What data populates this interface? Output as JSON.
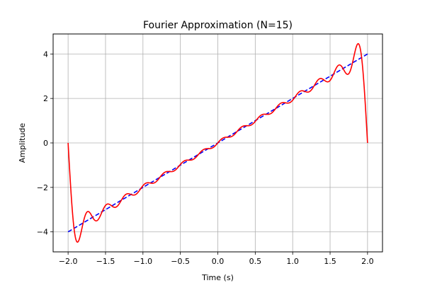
{
  "chart_data": {
    "type": "line",
    "title": "Fourier Approximation (N=15)",
    "xlabel": "Time (s)",
    "ylabel": "Amplitude",
    "xlim": [
      -2.2,
      2.2
    ],
    "ylim": [
      -4.9,
      4.9
    ],
    "xticks": [
      -2.0,
      -1.5,
      -1.0,
      -0.5,
      0.0,
      0.5,
      1.0,
      1.5,
      2.0
    ],
    "xtick_labels": [
      "−2.0",
      "−1.5",
      "−1.0",
      "−0.5",
      "0.0",
      "0.5",
      "1.0",
      "1.5",
      "2.0"
    ],
    "yticks": [
      -4,
      -2,
      0,
      2,
      4
    ],
    "ytick_labels": [
      "−4",
      "−2",
      "0",
      "2",
      "4"
    ],
    "grid": true,
    "series": [
      {
        "style": "dashed",
        "color": "#0000ff",
        "x": [
          -2.0,
          2.0
        ],
        "y": [
          -4.0,
          4.0
        ]
      },
      {
        "style": "solid",
        "color": "#ff0000",
        "function": "fourier_sawtooth",
        "terms": 15,
        "period": 4,
        "amplitude": 4,
        "x_range": [
          -2.0,
          2.0
        ]
      }
    ]
  }
}
